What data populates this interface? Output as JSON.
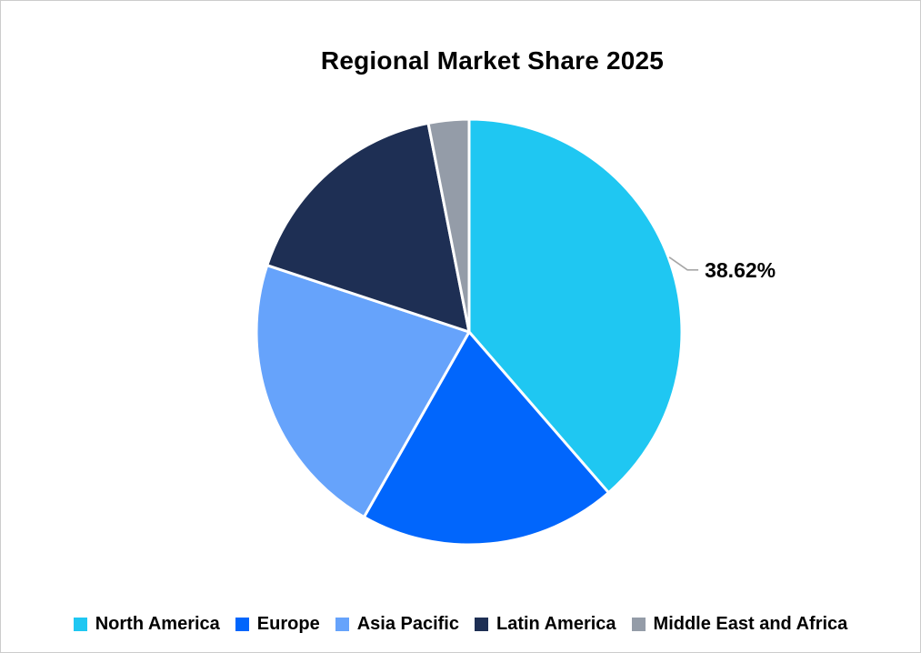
{
  "chart_data": {
    "type": "pie",
    "title": "Regional Market Share 2025",
    "categories": [
      "North America",
      "Europe",
      "Asia Pacific",
      "Latin America",
      "Middle East and Africa"
    ],
    "values": [
      38.62,
      19.6,
      21.85,
      16.85,
      3.08
    ],
    "colors": [
      "#1FC7F2",
      "#0166FC",
      "#66A3FB",
      "#1E2F54",
      "#949CA8"
    ],
    "start_angle_deg": 0,
    "clockwise": true,
    "legend_position": "bottom",
    "data_labels": [
      {
        "category": "North America",
        "text": "38.62%"
      }
    ],
    "slice_border_color": "#FFFFFF",
    "leader_line_color": "#A6A6A6",
    "label_color": "#000000",
    "title_color": "#000000",
    "background_color": "#FFFFFF",
    "frame_border_color": "#CCCCCC"
  }
}
